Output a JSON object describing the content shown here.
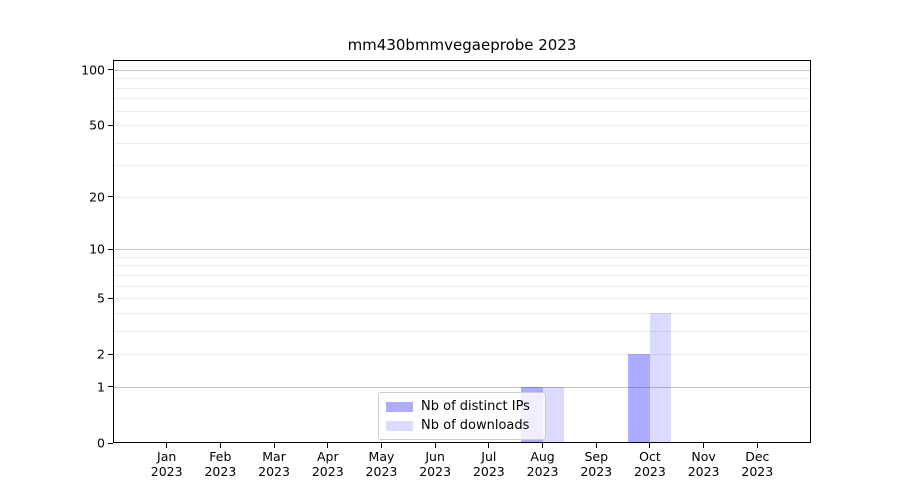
{
  "title": "mm430bmmvegaeprobe 2023",
  "chart_data": {
    "type": "bar",
    "title": "mm430bmmvegaeprobe 2023",
    "categories": [
      "Jan",
      "Feb",
      "Mar",
      "Apr",
      "May",
      "Jun",
      "Jul",
      "Aug",
      "Sep",
      "Oct",
      "Nov",
      "Dec"
    ],
    "year": "2023",
    "series": [
      {
        "name": "Nb of distinct IPs",
        "color": "rgba(0,0,255,0.32)",
        "color_hex_on_white": "#ababf8",
        "values": [
          0,
          0,
          0,
          0,
          0,
          0,
          0,
          1,
          0,
          2,
          0,
          0
        ]
      },
      {
        "name": "Nb of downloads",
        "color": "rgba(0,0,255,0.14)",
        "color_hex_on_white": "#dbdbf9",
        "values": [
          0,
          0,
          0,
          0,
          0,
          0,
          0,
          1,
          0,
          4,
          0,
          0
        ]
      }
    ],
    "xlabel": "",
    "ylabel": "",
    "y_scale": "log10(1+x)",
    "ylim": [
      0,
      113
    ],
    "y_ticks": [
      0,
      1,
      2,
      5,
      10,
      20,
      50,
      100
    ],
    "y_major_gridlines": [
      1,
      10,
      100
    ],
    "y_minor_gridlines": [
      2,
      3,
      4,
      5,
      6,
      7,
      8,
      9,
      20,
      30,
      40,
      50,
      60,
      70,
      80,
      90
    ],
    "grid": true,
    "legend_position": "lower center",
    "colors": {
      "axis": "#000000",
      "major_grid": "#c6c6c6",
      "minor_grid": "#ececec",
      "legend_border": "#cccccc"
    }
  }
}
